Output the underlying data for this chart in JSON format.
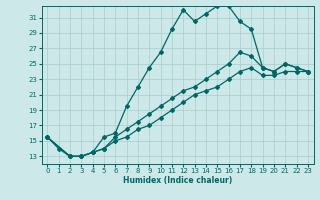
{
  "title": "",
  "xlabel": "Humidex (Indice chaleur)",
  "bg_color": "#cce8e8",
  "grid_color": "#aacccc",
  "line_color": "#006666",
  "marker": "D",
  "markersize": 2.0,
  "linewidth": 0.9,
  "xlim": [
    -0.5,
    23.5
  ],
  "ylim": [
    12,
    32.5
  ],
  "xticks": [
    0,
    1,
    2,
    3,
    4,
    5,
    6,
    7,
    8,
    9,
    10,
    11,
    12,
    13,
    14,
    15,
    16,
    17,
    18,
    19,
    20,
    21,
    22,
    23
  ],
  "yticks": [
    13,
    15,
    17,
    19,
    21,
    23,
    25,
    27,
    29,
    31
  ],
  "line1_x": [
    0,
    1,
    2,
    3,
    4,
    5,
    6,
    7,
    8,
    9,
    10,
    11,
    12,
    13,
    14,
    15,
    16,
    17,
    18,
    19,
    20,
    21,
    22,
    23
  ],
  "line1_y": [
    15.5,
    14.0,
    13.0,
    13.0,
    13.5,
    15.5,
    16.0,
    19.5,
    22.0,
    24.5,
    26.5,
    29.5,
    32.0,
    30.5,
    31.5,
    32.5,
    32.5,
    30.5,
    29.5,
    24.5,
    24.0,
    25.0,
    24.5,
    24.0
  ],
  "line2_x": [
    0,
    2,
    3,
    4,
    5,
    6,
    7,
    8,
    9,
    10,
    11,
    12,
    13,
    14,
    15,
    16,
    17,
    18,
    19,
    20,
    21,
    22,
    23
  ],
  "line2_y": [
    15.5,
    13.0,
    13.0,
    13.5,
    14.0,
    15.5,
    16.5,
    17.5,
    18.5,
    19.5,
    20.5,
    21.5,
    22.0,
    23.0,
    24.0,
    25.0,
    26.5,
    26.0,
    24.5,
    24.0,
    25.0,
    24.5,
    24.0
  ],
  "line3_x": [
    0,
    2,
    3,
    4,
    5,
    6,
    7,
    8,
    9,
    10,
    11,
    12,
    13,
    14,
    15,
    16,
    17,
    18,
    19,
    20,
    21,
    22,
    23
  ],
  "line3_y": [
    15.5,
    13.0,
    13.0,
    13.5,
    14.0,
    15.0,
    15.5,
    16.5,
    17.0,
    18.0,
    19.0,
    20.0,
    21.0,
    21.5,
    22.0,
    23.0,
    24.0,
    24.5,
    23.5,
    23.5,
    24.0,
    24.0,
    24.0
  ]
}
